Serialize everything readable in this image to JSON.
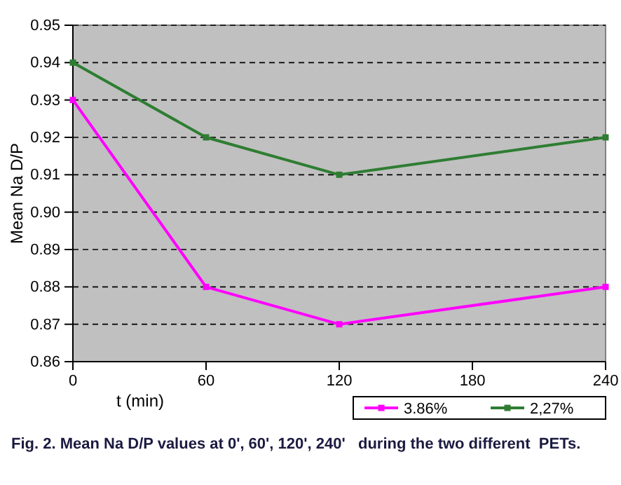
{
  "chart_data": {
    "type": "line",
    "ylabel": "Mean Na D/P",
    "xlabel": "t (min)",
    "x": [
      0,
      60,
      120,
      240
    ],
    "series": [
      {
        "name": "3.86%",
        "color": "#ff00ff",
        "values": [
          0.93,
          0.88,
          0.87,
          0.88
        ]
      },
      {
        "name": "2,27%",
        "color": "#2e7d32",
        "values": [
          0.94,
          0.92,
          0.91,
          0.92
        ]
      }
    ],
    "xlim": [
      0,
      240
    ],
    "xticks": [
      0,
      60,
      120,
      180,
      240
    ],
    "ylim": [
      0.86,
      0.95
    ],
    "yticks": [
      {
        "value": 0.86,
        "label": "0.86"
      },
      {
        "value": 0.87,
        "label": "0.87"
      },
      {
        "value": 0.88,
        "label": "0.88"
      },
      {
        "value": 0.89,
        "label": "0.89"
      },
      {
        "value": 0.9,
        "label": "0.90"
      },
      {
        "value": 0.91,
        "label": "0.91"
      },
      {
        "value": 0.92,
        "label": "0.92"
      },
      {
        "value": 0.93,
        "label": "0.93"
      },
      {
        "value": 0.94,
        "label": "0.94"
      },
      {
        "value": 0.95,
        "label": "0.95"
      }
    ],
    "grid": "y",
    "legend": "bottom right",
    "marker": "square",
    "line_style": "solid",
    "annotations": [
      "Fig. 2. Mean Na D/P values at 0', 60', 120', 240'   during the two different  PETs."
    ]
  }
}
